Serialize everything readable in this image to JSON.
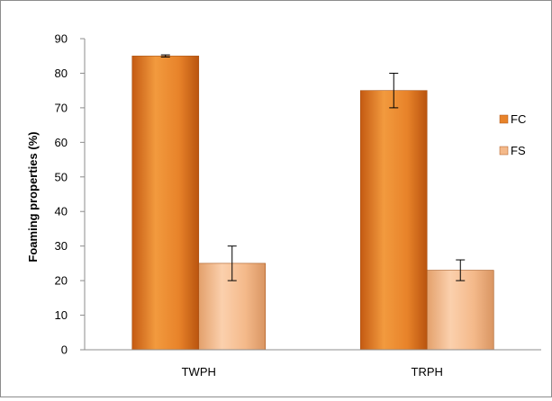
{
  "chart_data": {
    "type": "bar",
    "title": "",
    "xlabel": "",
    "ylabel": "Foaming properties (%)",
    "ylim": [
      0,
      90
    ],
    "yticks": [
      0,
      10,
      20,
      30,
      40,
      50,
      60,
      70,
      80,
      90
    ],
    "categories": [
      "TWPH",
      "TRPH"
    ],
    "series": [
      {
        "name": "FC",
        "values": [
          85,
          75
        ],
        "errors": [
          0.3,
          5
        ],
        "color": "#e8832a"
      },
      {
        "name": "FS",
        "values": [
          25,
          23
        ],
        "errors": [
          5,
          3
        ],
        "color": "#f4b98a"
      }
    ],
    "grid": false,
    "legend_position": "right"
  }
}
